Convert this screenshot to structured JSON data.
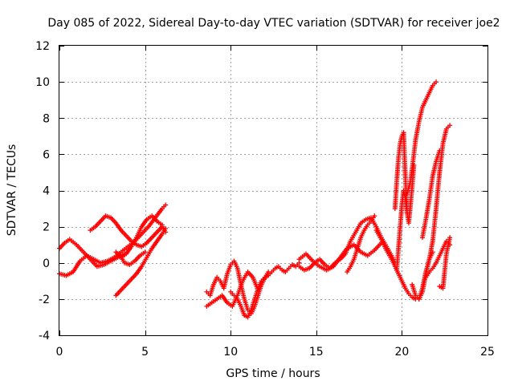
{
  "chart_data": {
    "type": "scatter",
    "title": "Day 085 of 2022, Sidereal Day-to-day VTEC variation (SDTVAR) for receiver joe2",
    "xlabel": "GPS time / hours",
    "ylabel": "SDTVAR / TECUs",
    "xlim": [
      0,
      25
    ],
    "ylim": [
      -4,
      12
    ],
    "xticks": [
      0,
      5,
      10,
      15,
      20,
      25
    ],
    "yticks": [
      -4,
      -2,
      0,
      2,
      4,
      6,
      8,
      10,
      12
    ],
    "xtick_labels": [
      "0",
      "5",
      "10",
      "15",
      "20",
      "25"
    ],
    "ytick_labels": [
      "-4",
      "-2",
      "0",
      "2",
      "4",
      "6",
      "8",
      "10",
      "12"
    ],
    "grid": true,
    "marker": "+",
    "series_color": "#ff0000",
    "series": [
      {
        "name": "seg1",
        "x": [
          0.0,
          0.3,
          0.6,
          1.0,
          1.4,
          1.8,
          2.2,
          2.6,
          3.0,
          3.4,
          3.8
        ],
        "y": [
          0.8,
          1.1,
          1.3,
          1.0,
          0.6,
          0.2,
          -0.2,
          -0.1,
          0.1,
          0.3,
          0.5
        ]
      },
      {
        "name": "seg2",
        "x": [
          0.0,
          0.4,
          0.8,
          1.2,
          1.6,
          2.0,
          2.4,
          2.8,
          3.2,
          3.6,
          4.0,
          4.4,
          4.8,
          5.2,
          5.6,
          6.0,
          6.2
        ],
        "y": [
          -0.6,
          -0.7,
          -0.5,
          0.1,
          0.4,
          0.2,
          0.0,
          0.1,
          0.3,
          0.6,
          0.9,
          1.2,
          1.6,
          2.0,
          2.5,
          3.0,
          3.2
        ]
      },
      {
        "name": "seg3",
        "x": [
          1.8,
          2.1,
          2.4,
          2.7,
          3.0,
          3.3,
          3.6,
          3.9,
          4.2,
          4.5,
          4.8,
          5.1,
          5.4,
          5.7,
          6.0,
          6.2
        ],
        "y": [
          1.8,
          2.0,
          2.3,
          2.6,
          2.5,
          2.2,
          1.8,
          1.5,
          1.2,
          1.0,
          0.9,
          1.1,
          1.4,
          1.7,
          2.0,
          1.7
        ]
      },
      {
        "name": "seg4",
        "x": [
          3.3,
          3.6,
          3.9,
          4.2,
          4.5,
          4.8,
          5.1,
          5.4,
          5.7,
          6.0,
          6.2
        ],
        "y": [
          -1.8,
          -1.5,
          -1.2,
          -0.9,
          -0.6,
          -0.2,
          0.3,
          0.8,
          1.2,
          1.6,
          1.9
        ]
      },
      {
        "name": "seg5",
        "x": [
          3.3,
          3.6,
          3.9,
          4.2,
          4.5,
          4.8,
          5.1,
          5.4,
          5.7,
          6.0
        ],
        "y": [
          0.6,
          0.3,
          0.5,
          0.9,
          1.4,
          2.0,
          2.4,
          2.6,
          2.3,
          2.1
        ]
      },
      {
        "name": "seg6",
        "x": [
          3.5,
          3.8,
          4.1,
          4.4,
          4.7,
          5.0
        ],
        "y": [
          0.5,
          0.0,
          -0.1,
          0.1,
          0.4,
          0.6
        ]
      },
      {
        "name": "seg7",
        "x": [
          8.6,
          8.8,
          9.0,
          9.2,
          9.4,
          9.6,
          9.8,
          10.0,
          10.2,
          10.4,
          10.6,
          10.8,
          11.0,
          11.2,
          11.4,
          11.6,
          11.8,
          12.0,
          12.2,
          12.4,
          12.6,
          12.8,
          13.0,
          13.2,
          13.4,
          13.6,
          13.8,
          14.0
        ],
        "y": [
          -1.6,
          -1.8,
          -1.2,
          -0.8,
          -1.0,
          -1.4,
          -0.6,
          -0.1,
          0.1,
          -0.3,
          -1.2,
          -2.0,
          -2.6,
          -2.8,
          -2.4,
          -1.8,
          -1.2,
          -0.8,
          -0.7,
          -0.5,
          -0.3,
          -0.2,
          -0.4,
          -0.5,
          -0.3,
          -0.1,
          -0.2,
          0.0
        ]
      },
      {
        "name": "seg8",
        "x": [
          8.6,
          8.9,
          9.2,
          9.5,
          9.8,
          10.1,
          10.4,
          10.7,
          11.0,
          11.3,
          11.6,
          11.9,
          12.2
        ],
        "y": [
          -2.4,
          -2.2,
          -2.0,
          -1.8,
          -2.2,
          -2.4,
          -1.8,
          -1.0,
          -0.5,
          -0.8,
          -1.5,
          -1.0,
          -0.5
        ]
      },
      {
        "name": "seg9",
        "x": [
          10.0,
          10.2,
          10.4,
          10.6,
          10.8,
          11.0,
          11.2,
          11.4,
          11.6,
          11.8,
          12.0
        ],
        "y": [
          -1.6,
          -1.8,
          -2.0,
          -2.4,
          -2.9,
          -3.0,
          -2.6,
          -2.0,
          -1.4,
          -1.0,
          -0.8
        ]
      },
      {
        "name": "seg10",
        "x": [
          14.0,
          14.3,
          14.6,
          14.9,
          15.2,
          15.5,
          15.8,
          16.1,
          16.4,
          16.7,
          17.0,
          17.3,
          17.6,
          17.9,
          18.2,
          18.5,
          18.8,
          19.1,
          19.4,
          19.6
        ],
        "y": [
          -0.2,
          -0.4,
          -0.3,
          0.0,
          0.2,
          -0.1,
          -0.3,
          0.0,
          0.2,
          0.5,
          1.2,
          1.7,
          2.2,
          2.4,
          2.5,
          2.0,
          1.4,
          0.9,
          0.4,
          0.0
        ]
      },
      {
        "name": "seg11",
        "x": [
          14.0,
          14.4,
          14.8,
          15.2,
          15.6,
          16.0,
          16.4,
          16.8,
          17.2,
          17.6,
          18.0,
          18.4,
          18.8
        ],
        "y": [
          0.2,
          0.5,
          0.1,
          -0.2,
          -0.4,
          -0.2,
          0.3,
          0.8,
          1.0,
          0.6,
          0.4,
          0.7,
          1.1
        ]
      },
      {
        "name": "seg12",
        "x": [
          16.8,
          17.0,
          17.2,
          17.4,
          17.6,
          17.8,
          18.0,
          18.2,
          18.4
        ],
        "y": [
          -0.5,
          -0.2,
          0.2,
          0.8,
          1.4,
          1.8,
          2.1,
          2.3,
          2.6
        ]
      },
      {
        "name": "seg13",
        "x": [
          18.5,
          18.8,
          19.1,
          19.4,
          19.7,
          20.0,
          20.2,
          20.4,
          20.6,
          20.8,
          21.0,
          21.2,
          21.4,
          21.6,
          21.8
        ],
        "y": [
          1.8,
          1.3,
          0.7,
          0.2,
          -0.4,
          -1.0,
          -1.4,
          -1.7,
          -1.9,
          -2.0,
          -2.0,
          -1.6,
          -0.6,
          0.2,
          0.6
        ]
      },
      {
        "name": "seg14",
        "x": [
          19.6,
          19.7,
          19.8,
          19.9,
          20.0,
          20.1,
          20.2,
          20.3
        ],
        "y": [
          3.0,
          4.5,
          5.8,
          6.6,
          7.0,
          7.2,
          4.8,
          2.8
        ]
      },
      {
        "name": "seg15",
        "x": [
          19.7,
          19.8,
          19.9,
          20.0,
          20.1,
          20.2,
          20.3,
          20.4,
          20.5,
          20.6,
          20.7
        ],
        "y": [
          -0.4,
          0.8,
          2.0,
          3.2,
          4.0,
          3.6,
          2.8,
          2.2,
          3.2,
          4.2,
          5.4
        ]
      },
      {
        "name": "seg16",
        "x": [
          20.3,
          20.5,
          20.6,
          20.7,
          20.8,
          20.9,
          21.0,
          21.1,
          21.2,
          21.4,
          21.6,
          21.8,
          22.0
        ],
        "y": [
          3.8,
          4.5,
          5.2,
          6.0,
          6.8,
          7.3,
          7.8,
          8.2,
          8.6,
          9.0,
          9.4,
          9.8,
          10.0
        ]
      },
      {
        "name": "seg17",
        "x": [
          20.6,
          20.8,
          21.0,
          21.2,
          21.4,
          21.6,
          21.8,
          22.0,
          22.2,
          22.4,
          22.6,
          22.8
        ],
        "y": [
          -1.2,
          -1.8,
          -2.0,
          -1.4,
          -0.5,
          0.2,
          1.2,
          3.0,
          5.0,
          6.6,
          7.4,
          7.6
        ]
      },
      {
        "name": "seg18",
        "x": [
          21.2,
          21.4,
          21.6,
          21.8,
          22.0,
          22.2
        ],
        "y": [
          1.4,
          2.4,
          3.5,
          4.8,
          5.6,
          6.2
        ]
      },
      {
        "name": "seg19",
        "x": [
          21.4,
          21.6,
          21.8,
          22.0,
          22.2,
          22.4,
          22.6,
          22.8
        ],
        "y": [
          -0.8,
          -0.5,
          -0.3,
          0.0,
          0.4,
          0.8,
          1.2,
          1.0
        ]
      },
      {
        "name": "seg20",
        "x": [
          22.2,
          22.4,
          22.6,
          22.8
        ],
        "y": [
          -1.3,
          -1.4,
          0.5,
          1.4
        ]
      }
    ]
  }
}
